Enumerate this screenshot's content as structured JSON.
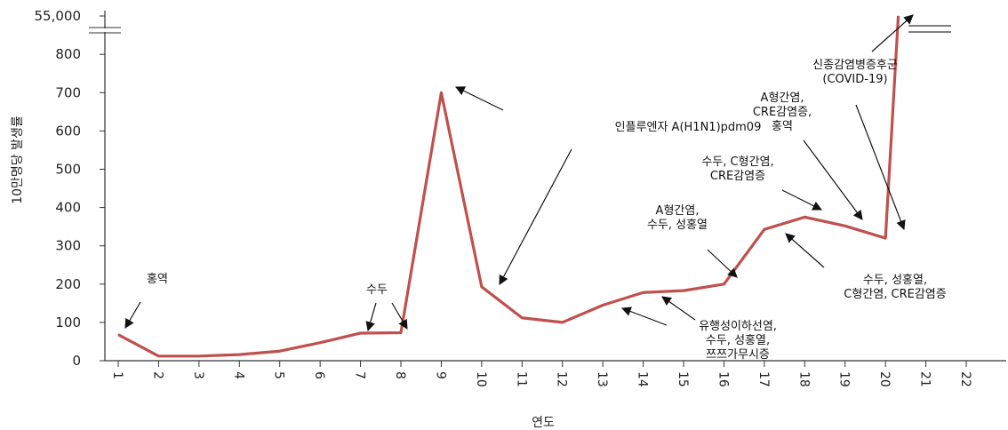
{
  "chart_data": {
    "type": "line",
    "title": "",
    "xlabel": "연도",
    "ylabel": "10만명당 발생률",
    "x": [
      "1",
      "2",
      "3",
      "4",
      "5",
      "6",
      "7",
      "8",
      "9",
      "10",
      "11",
      "12",
      "13",
      "14",
      "15",
      "16",
      "17",
      "18",
      "19",
      "20",
      "21",
      "22"
    ],
    "y_ticks": [
      "0",
      "100",
      "200",
      "300",
      "400",
      "500",
      "600",
      "700",
      "800",
      "55,000"
    ],
    "series": [
      {
        "values": [
          68,
          12,
          12,
          16,
          25,
          47,
          72,
          73,
          700,
          193,
          112,
          100,
          145,
          178,
          183,
          200,
          343,
          375,
          352,
          320,
          55000,
          null
        ],
        "color": "#c0504d"
      }
    ],
    "axis_break": {
      "y_lower_max": 800,
      "y_upper_value": 55000
    },
    "ylim": [
      0,
      55000
    ],
    "grid": false,
    "annotations": [
      {
        "id": "a1",
        "lines": [
          "홍역"
        ]
      },
      {
        "id": "a2",
        "lines": [
          "수두"
        ]
      },
      {
        "id": "a3",
        "lines": [
          "인플루엔자 A(H1N1)pdm09"
        ]
      },
      {
        "id": "a4",
        "lines": [
          "유행성이하선염,",
          "수두, 성홍열,",
          "쯔쯔가무시증"
        ]
      },
      {
        "id": "a5",
        "lines": [
          "A형간염,",
          "수두, 성홍열"
        ]
      },
      {
        "id": "a6",
        "lines": [
          "수두, C형간염,",
          "CRE감염증"
        ]
      },
      {
        "id": "a7",
        "lines": [
          "수두, 성홍열,",
          "C형간염, CRE감염증"
        ]
      },
      {
        "id": "a8",
        "lines": [
          "A형간염,",
          "CRE감염증,",
          "홍역"
        ]
      },
      {
        "id": "a9",
        "lines": [
          "신종감염병증후군",
          "(COVID-19)"
        ]
      }
    ]
  }
}
